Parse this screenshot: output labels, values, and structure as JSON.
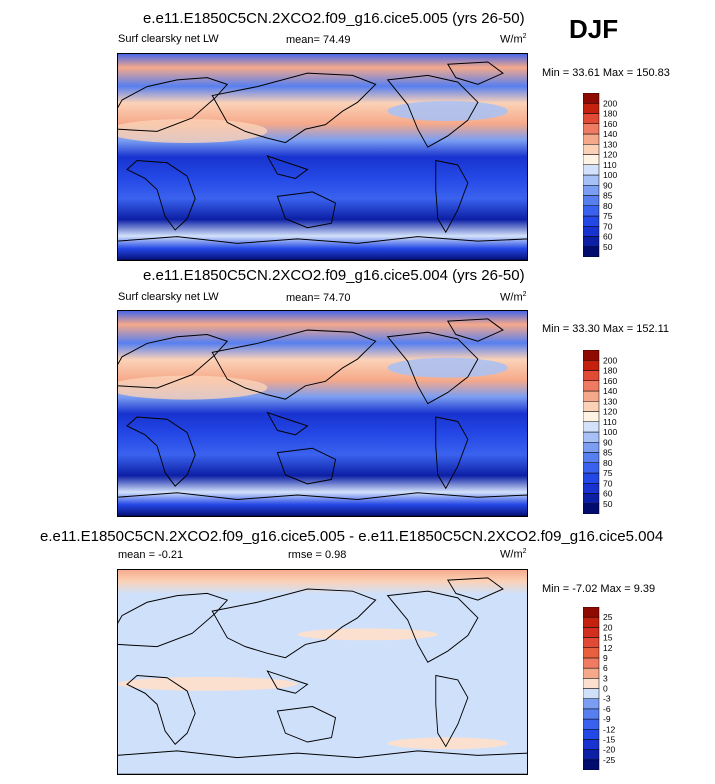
{
  "season": "DJF",
  "panels": [
    {
      "title": "e.e11.E1850C5CN.2XCO2.f09_g16.cice5.005 (yrs 26-50)",
      "field": "Surf clearsky net LW",
      "stat1_label": "mean=",
      "stat1_value": "74.49",
      "units": "W/m",
      "units_sup": "2",
      "min_label": "Min =",
      "min_value": "33.61",
      "max_label": "Max =",
      "max_value": "150.83"
    },
    {
      "title": "e.e11.E1850C5CN.2XCO2.f09_g16.cice5.004 (yrs 26-50)",
      "field": "Surf clearsky net LW",
      "stat1_label": "mean=",
      "stat1_value": "74.70",
      "units": "W/m",
      "units_sup": "2",
      "min_label": "Min =",
      "min_value": "33.30",
      "max_label": "Max =",
      "max_value": "152.11"
    },
    {
      "title": "e.e11.E1850C5CN.2XCO2.f09_g16.cice5.005 - e.e11.E1850C5CN.2XCO2.f09_g16.cice5.004",
      "stat1_label": "mean =",
      "stat1_value": "-0.21",
      "stat2_label": "rmse =",
      "stat2_value": "0.98",
      "units": "W/m",
      "units_sup": "2",
      "min_label": "Min =",
      "min_value": "-7.02",
      "max_label": "Max =",
      "max_value": "9.39"
    }
  ],
  "chart_data": [
    {
      "type": "heatmap",
      "title": "e.e11.E1850C5CN.2XCO2.f09_g16.cice5.005 (yrs 26-50)",
      "variable": "Surf clearsky net LW",
      "units": "W/m2",
      "mean": 74.49,
      "min": 33.61,
      "max": 150.83,
      "colorbar_levels": [
        50,
        60,
        70,
        75,
        80,
        85,
        90,
        100,
        110,
        120,
        130,
        140,
        160,
        180,
        200
      ],
      "colorbar_labels": [
        "200",
        "180",
        "160",
        "140",
        "130",
        "120",
        "110",
        "100",
        "90",
        "85",
        "80",
        "75",
        "70",
        "60",
        "50"
      ],
      "colors": [
        "#020b6e",
        "#0c1fa5",
        "#1833cf",
        "#2448e6",
        "#3a62ee",
        "#577ff0",
        "#7b9ef2",
        "#a7c1f6",
        "#d3e2fa",
        "#fff3e3",
        "#fbd2b7",
        "#f6a98a",
        "#ef7c62",
        "#e14a34",
        "#c4220f",
        "#8e0a03"
      ]
    },
    {
      "type": "heatmap",
      "title": "e.e11.E1850C5CN.2XCO2.f09_g16.cice5.004 (yrs 26-50)",
      "variable": "Surf clearsky net LW",
      "units": "W/m2",
      "mean": 74.7,
      "min": 33.3,
      "max": 152.11,
      "colorbar_levels": [
        50,
        60,
        70,
        75,
        80,
        85,
        90,
        100,
        110,
        120,
        130,
        140,
        160,
        180,
        200
      ],
      "colorbar_labels": [
        "200",
        "180",
        "160",
        "140",
        "130",
        "120",
        "110",
        "100",
        "90",
        "85",
        "80",
        "75",
        "70",
        "60",
        "50"
      ],
      "colors": [
        "#020b6e",
        "#0c1fa5",
        "#1833cf",
        "#2448e6",
        "#3a62ee",
        "#577ff0",
        "#7b9ef2",
        "#a7c1f6",
        "#d3e2fa",
        "#fff3e3",
        "#fbd2b7",
        "#f6a98a",
        "#ef7c62",
        "#e14a34",
        "#c4220f",
        "#8e0a03"
      ]
    },
    {
      "type": "heatmap",
      "title": "e.e11.E1850C5CN.2XCO2.f09_g16.cice5.005 - e.e11.E1850C5CN.2XCO2.f09_g16.cice5.004",
      "units": "W/m2",
      "mean": -0.21,
      "rmse": 0.98,
      "min": -7.02,
      "max": 9.39,
      "colorbar_levels": [
        -25,
        -20,
        -15,
        -12,
        -9,
        -6,
        -3,
        0,
        3,
        6,
        9,
        12,
        15,
        20,
        25
      ],
      "colorbar_labels": [
        "25",
        "20",
        "15",
        "12",
        "9",
        "6",
        "3",
        "0",
        "-3",
        "-6",
        "-9",
        "-12",
        "-15",
        "-20",
        "-25"
      ],
      "colors": [
        "#020b6e",
        "#0c1fa5",
        "#1833cf",
        "#2448e6",
        "#3a62ee",
        "#577ff0",
        "#7b9ef2",
        "#cfe0fa",
        "#fbe0cf",
        "#f6a98a",
        "#ef7c62",
        "#e9603f",
        "#e14a34",
        "#d0301d",
        "#c4220f",
        "#8e0a03"
      ]
    }
  ]
}
